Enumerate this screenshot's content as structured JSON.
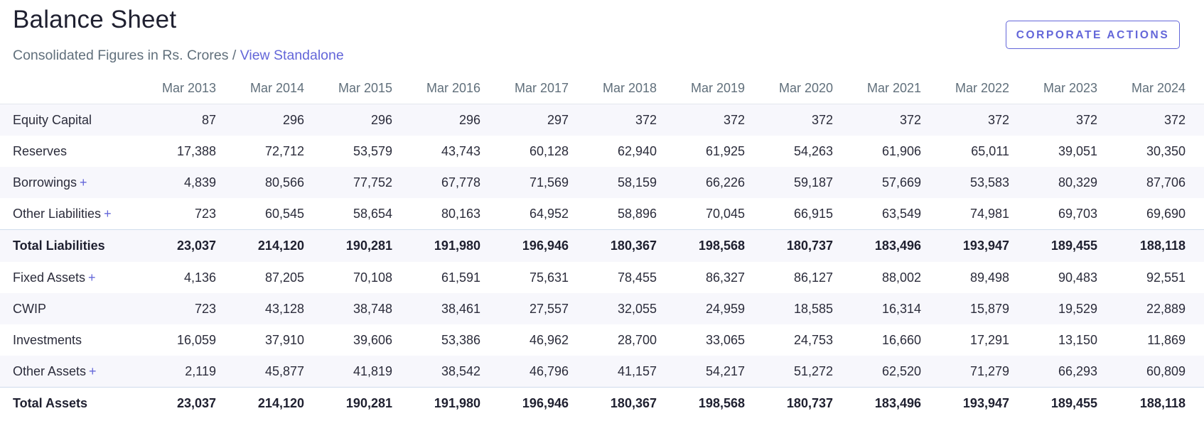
{
  "title": "Balance Sheet",
  "subtitle": {
    "text": "Consolidated Figures in Rs. Crores / ",
    "link": "View Standalone"
  },
  "corporate_actions_label": "CORPORATE ACTIONS",
  "columns": [
    "Mar 2013",
    "Mar 2014",
    "Mar 2015",
    "Mar 2016",
    "Mar 2017",
    "Mar 2018",
    "Mar 2019",
    "Mar 2020",
    "Mar 2021",
    "Mar 2022",
    "Mar 2023",
    "Mar 2024"
  ],
  "expand_symbol": "+",
  "rows": [
    {
      "label": "Equity Capital",
      "expandable": false,
      "total": false,
      "shaded": true,
      "values": [
        "87",
        "296",
        "296",
        "296",
        "297",
        "372",
        "372",
        "372",
        "372",
        "372",
        "372",
        "372"
      ]
    },
    {
      "label": "Reserves",
      "expandable": false,
      "total": false,
      "shaded": false,
      "values": [
        "17,388",
        "72,712",
        "53,579",
        "43,743",
        "60,128",
        "62,940",
        "61,925",
        "54,263",
        "61,906",
        "65,011",
        "39,051",
        "30,350"
      ]
    },
    {
      "label": "Borrowings",
      "expandable": true,
      "total": false,
      "shaded": true,
      "values": [
        "4,839",
        "80,566",
        "77,752",
        "67,778",
        "71,569",
        "58,159",
        "66,226",
        "59,187",
        "57,669",
        "53,583",
        "80,329",
        "87,706"
      ]
    },
    {
      "label": "Other Liabilities",
      "expandable": true,
      "total": false,
      "shaded": false,
      "values": [
        "723",
        "60,545",
        "58,654",
        "80,163",
        "64,952",
        "58,896",
        "70,045",
        "66,915",
        "63,549",
        "74,981",
        "69,703",
        "69,690"
      ]
    },
    {
      "label": "Total Liabilities",
      "expandable": false,
      "total": true,
      "shaded": true,
      "values": [
        "23,037",
        "214,120",
        "190,281",
        "191,980",
        "196,946",
        "180,367",
        "198,568",
        "180,737",
        "183,496",
        "193,947",
        "189,455",
        "188,118"
      ]
    },
    {
      "label": "Fixed Assets",
      "expandable": true,
      "total": false,
      "shaded": false,
      "values": [
        "4,136",
        "87,205",
        "70,108",
        "61,591",
        "75,631",
        "78,455",
        "86,327",
        "86,127",
        "88,002",
        "89,498",
        "90,483",
        "92,551"
      ]
    },
    {
      "label": "CWIP",
      "expandable": false,
      "total": false,
      "shaded": true,
      "values": [
        "723",
        "43,128",
        "38,748",
        "38,461",
        "27,557",
        "32,055",
        "24,959",
        "18,585",
        "16,314",
        "15,879",
        "19,529",
        "22,889"
      ]
    },
    {
      "label": "Investments",
      "expandable": false,
      "total": false,
      "shaded": false,
      "values": [
        "16,059",
        "37,910",
        "39,606",
        "53,386",
        "46,962",
        "28,700",
        "33,065",
        "24,753",
        "16,660",
        "17,291",
        "13,150",
        "11,869"
      ]
    },
    {
      "label": "Other Assets",
      "expandable": true,
      "total": false,
      "shaded": true,
      "values": [
        "2,119",
        "45,877",
        "41,819",
        "38,542",
        "46,796",
        "41,157",
        "54,217",
        "51,272",
        "62,520",
        "71,279",
        "66,293",
        "60,809"
      ]
    },
    {
      "label": "Total Assets",
      "expandable": false,
      "total": true,
      "shaded": false,
      "values": [
        "23,037",
        "214,120",
        "190,281",
        "191,980",
        "196,946",
        "180,367",
        "198,568",
        "180,737",
        "183,496",
        "193,947",
        "189,455",
        "188,118"
      ]
    }
  ]
}
